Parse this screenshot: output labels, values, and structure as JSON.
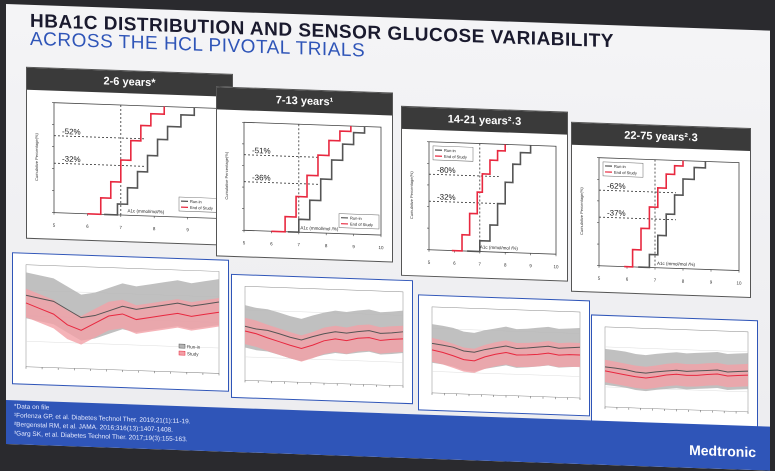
{
  "header": {
    "title_line1": "HBA1C DISTRIBUTION AND SENSOR GLUCOSE VARIABILITY",
    "title_line2": "ACROSS THE HCL PIVOTAL TRIALS"
  },
  "colors": {
    "run_in": "#555555",
    "end_of_study": "#e8283f",
    "band_run_in": "#b5b5b5",
    "band_study": "#f2a0a6",
    "accent": "#2f55b8"
  },
  "cdf_panels": [
    {
      "header": "2-6 years*",
      "pct_high": "-52%",
      "pct_low": "-32%",
      "xlabel": "A1c (mmol/mol/%)",
      "legend": [
        "Run-in",
        "End of Study"
      ]
    },
    {
      "header": "7-13 years¹",
      "pct_high": "-51%",
      "pct_low": "-36%",
      "xlabel": "A1c (mmol/mol /%)",
      "legend": [
        "Run-in",
        "End of Study"
      ]
    },
    {
      "header": "14-21 years²˓3",
      "pct_high": "-80%",
      "pct_low": "-32%",
      "xlabel": "A1c (mmol/mol /%)",
      "legend": [
        "Run-in",
        "End of Study"
      ]
    },
    {
      "header": "22-75 years²˓3",
      "pct_high": "-62%",
      "pct_low": "-37%",
      "xlabel": "A1c (mmol/mol /%)",
      "legend": [
        "Run-in",
        "End of Study"
      ]
    }
  ],
  "ts_legend": [
    "Run-in",
    "Study"
  ],
  "chart_data": [
    {
      "type": "line",
      "title": "2-6 years*",
      "xlabel": "A1c (mmol/mol/%)",
      "ylabel": "Cumulative Percentage(%)",
      "xlim": [
        5,
        10
      ],
      "ylim": [
        0,
        1
      ],
      "series": [
        {
          "name": "Run-in",
          "x": [
            6.5,
            6.9,
            7.2,
            7.5,
            7.8,
            8.1,
            8.4,
            8.8,
            9.2
          ],
          "y": [
            0,
            0.1,
            0.25,
            0.4,
            0.55,
            0.7,
            0.82,
            0.93,
            1.0
          ]
        },
        {
          "name": "End of Study",
          "x": [
            6.0,
            6.4,
            6.7,
            7.0,
            7.3,
            7.6,
            7.9,
            8.3
          ],
          "y": [
            0,
            0.15,
            0.3,
            0.5,
            0.68,
            0.82,
            0.93,
            1.0
          ]
        }
      ]
    },
    {
      "type": "line",
      "title": "7-13 years¹",
      "xlabel": "A1c (mmol/mol /%)",
      "ylabel": "Cumulative Percentage(%)",
      "xlim": [
        5,
        10
      ],
      "ylim": [
        0,
        1
      ],
      "series": [
        {
          "name": "Run-in",
          "x": [
            6.6,
            7.0,
            7.4,
            7.8,
            8.2,
            8.6,
            9.0,
            9.4
          ],
          "y": [
            0,
            0.12,
            0.3,
            0.5,
            0.68,
            0.83,
            0.94,
            1.0
          ]
        },
        {
          "name": "End of Study",
          "x": [
            6.0,
            6.5,
            6.9,
            7.3,
            7.7,
            8.1,
            8.5,
            8.9
          ],
          "y": [
            0,
            0.14,
            0.33,
            0.53,
            0.72,
            0.86,
            0.95,
            1.0
          ]
        }
      ]
    },
    {
      "type": "line",
      "title": "14-21 years²˓3",
      "xlabel": "A1c (mmol/mol /%)",
      "ylabel": "Cumulative Percentage(%)",
      "xlim": [
        5,
        10
      ],
      "ylim": [
        0,
        1
      ],
      "series": [
        {
          "name": "Run-in",
          "x": [
            6.5,
            7.0,
            7.4,
            7.7,
            8.0,
            8.3,
            8.6,
            9.0
          ],
          "y": [
            0,
            0.1,
            0.25,
            0.45,
            0.65,
            0.82,
            0.93,
            1.0
          ]
        },
        {
          "name": "End of Study",
          "x": [
            5.9,
            6.3,
            6.6,
            6.9,
            7.1,
            7.4,
            7.7,
            8.0
          ],
          "y": [
            0,
            0.15,
            0.35,
            0.55,
            0.72,
            0.85,
            0.94,
            1.0
          ]
        }
      ]
    },
    {
      "type": "line",
      "title": "22-75 years²˓3",
      "xlabel": "A1c (mmol/mol /%)",
      "ylabel": "Cumulative Percentage(%)",
      "xlim": [
        5,
        10
      ],
      "ylim": [
        0,
        1
      ],
      "series": [
        {
          "name": "Run-in",
          "x": [
            6.4,
            6.8,
            7.1,
            7.4,
            7.7,
            8.0,
            8.4,
            8.8
          ],
          "y": [
            0,
            0.12,
            0.3,
            0.5,
            0.68,
            0.83,
            0.94,
            1.0
          ]
        },
        {
          "name": "End of Study",
          "x": [
            5.9,
            6.2,
            6.5,
            6.8,
            7.1,
            7.4,
            7.7,
            8.0
          ],
          "y": [
            0,
            0.16,
            0.36,
            0.56,
            0.74,
            0.87,
            0.95,
            1.0
          ]
        }
      ]
    },
    {
      "type": "area",
      "title": "",
      "series": [
        {
          "name": "Run-in",
          "median": [
            200,
            195,
            190,
            175,
            160,
            165,
            175,
            185,
            180,
            185,
            190,
            195,
            190,
            195,
            200
          ]
        },
        {
          "name": "Study",
          "median": [
            185,
            175,
            165,
            145,
            135,
            150,
            165,
            170,
            160,
            165,
            170,
            175,
            170,
            175,
            180
          ]
        }
      ]
    },
    {
      "type": "area",
      "title": "",
      "series": [
        {
          "name": "Run-in",
          "median": [
            175,
            170,
            168,
            162,
            155,
            150,
            158,
            165,
            170,
            168,
            172,
            175,
            170,
            172,
            175
          ]
        },
        {
          "name": "Study",
          "median": [
            165,
            160,
            152,
            145,
            138,
            132,
            140,
            150,
            155,
            152,
            158,
            160,
            155,
            158,
            160
          ]
        }
      ]
    },
    {
      "type": "area",
      "title": "",
      "series": [
        {
          "name": "Run-in",
          "median": [
            175,
            172,
            168,
            160,
            158,
            165,
            170,
            175,
            170,
            172,
            175,
            178,
            174,
            176,
            178
          ]
        },
        {
          "name": "Study",
          "median": [
            160,
            155,
            148,
            140,
            138,
            148,
            155,
            160,
            155,
            156,
            158,
            162,
            158,
            160,
            160
          ]
        }
      ]
    },
    {
      "type": "area",
      "title": "",
      "series": [
        {
          "name": "Run-in",
          "median": [
            160,
            158,
            155,
            150,
            148,
            152,
            155,
            158,
            156,
            158,
            160,
            162,
            158,
            160,
            162
          ]
        },
        {
          "name": "Study",
          "median": [
            150,
            146,
            142,
            138,
            136,
            140,
            145,
            148,
            146,
            147,
            150,
            152,
            148,
            150,
            152
          ]
        }
      ]
    }
  ],
  "footer": {
    "notes": [
      "*Data on file",
      "¹Forlenza GP, et al. Diabetes Technol Ther. 2019;21(1):11-19.",
      "²Bergenstal RM, et al. JAMA. 2016;316(13):1407-1408.",
      "³Garg SK, et al. Diabetes Technol Ther. 2017;19(3):155-163."
    ],
    "brand": "Medtronic"
  }
}
